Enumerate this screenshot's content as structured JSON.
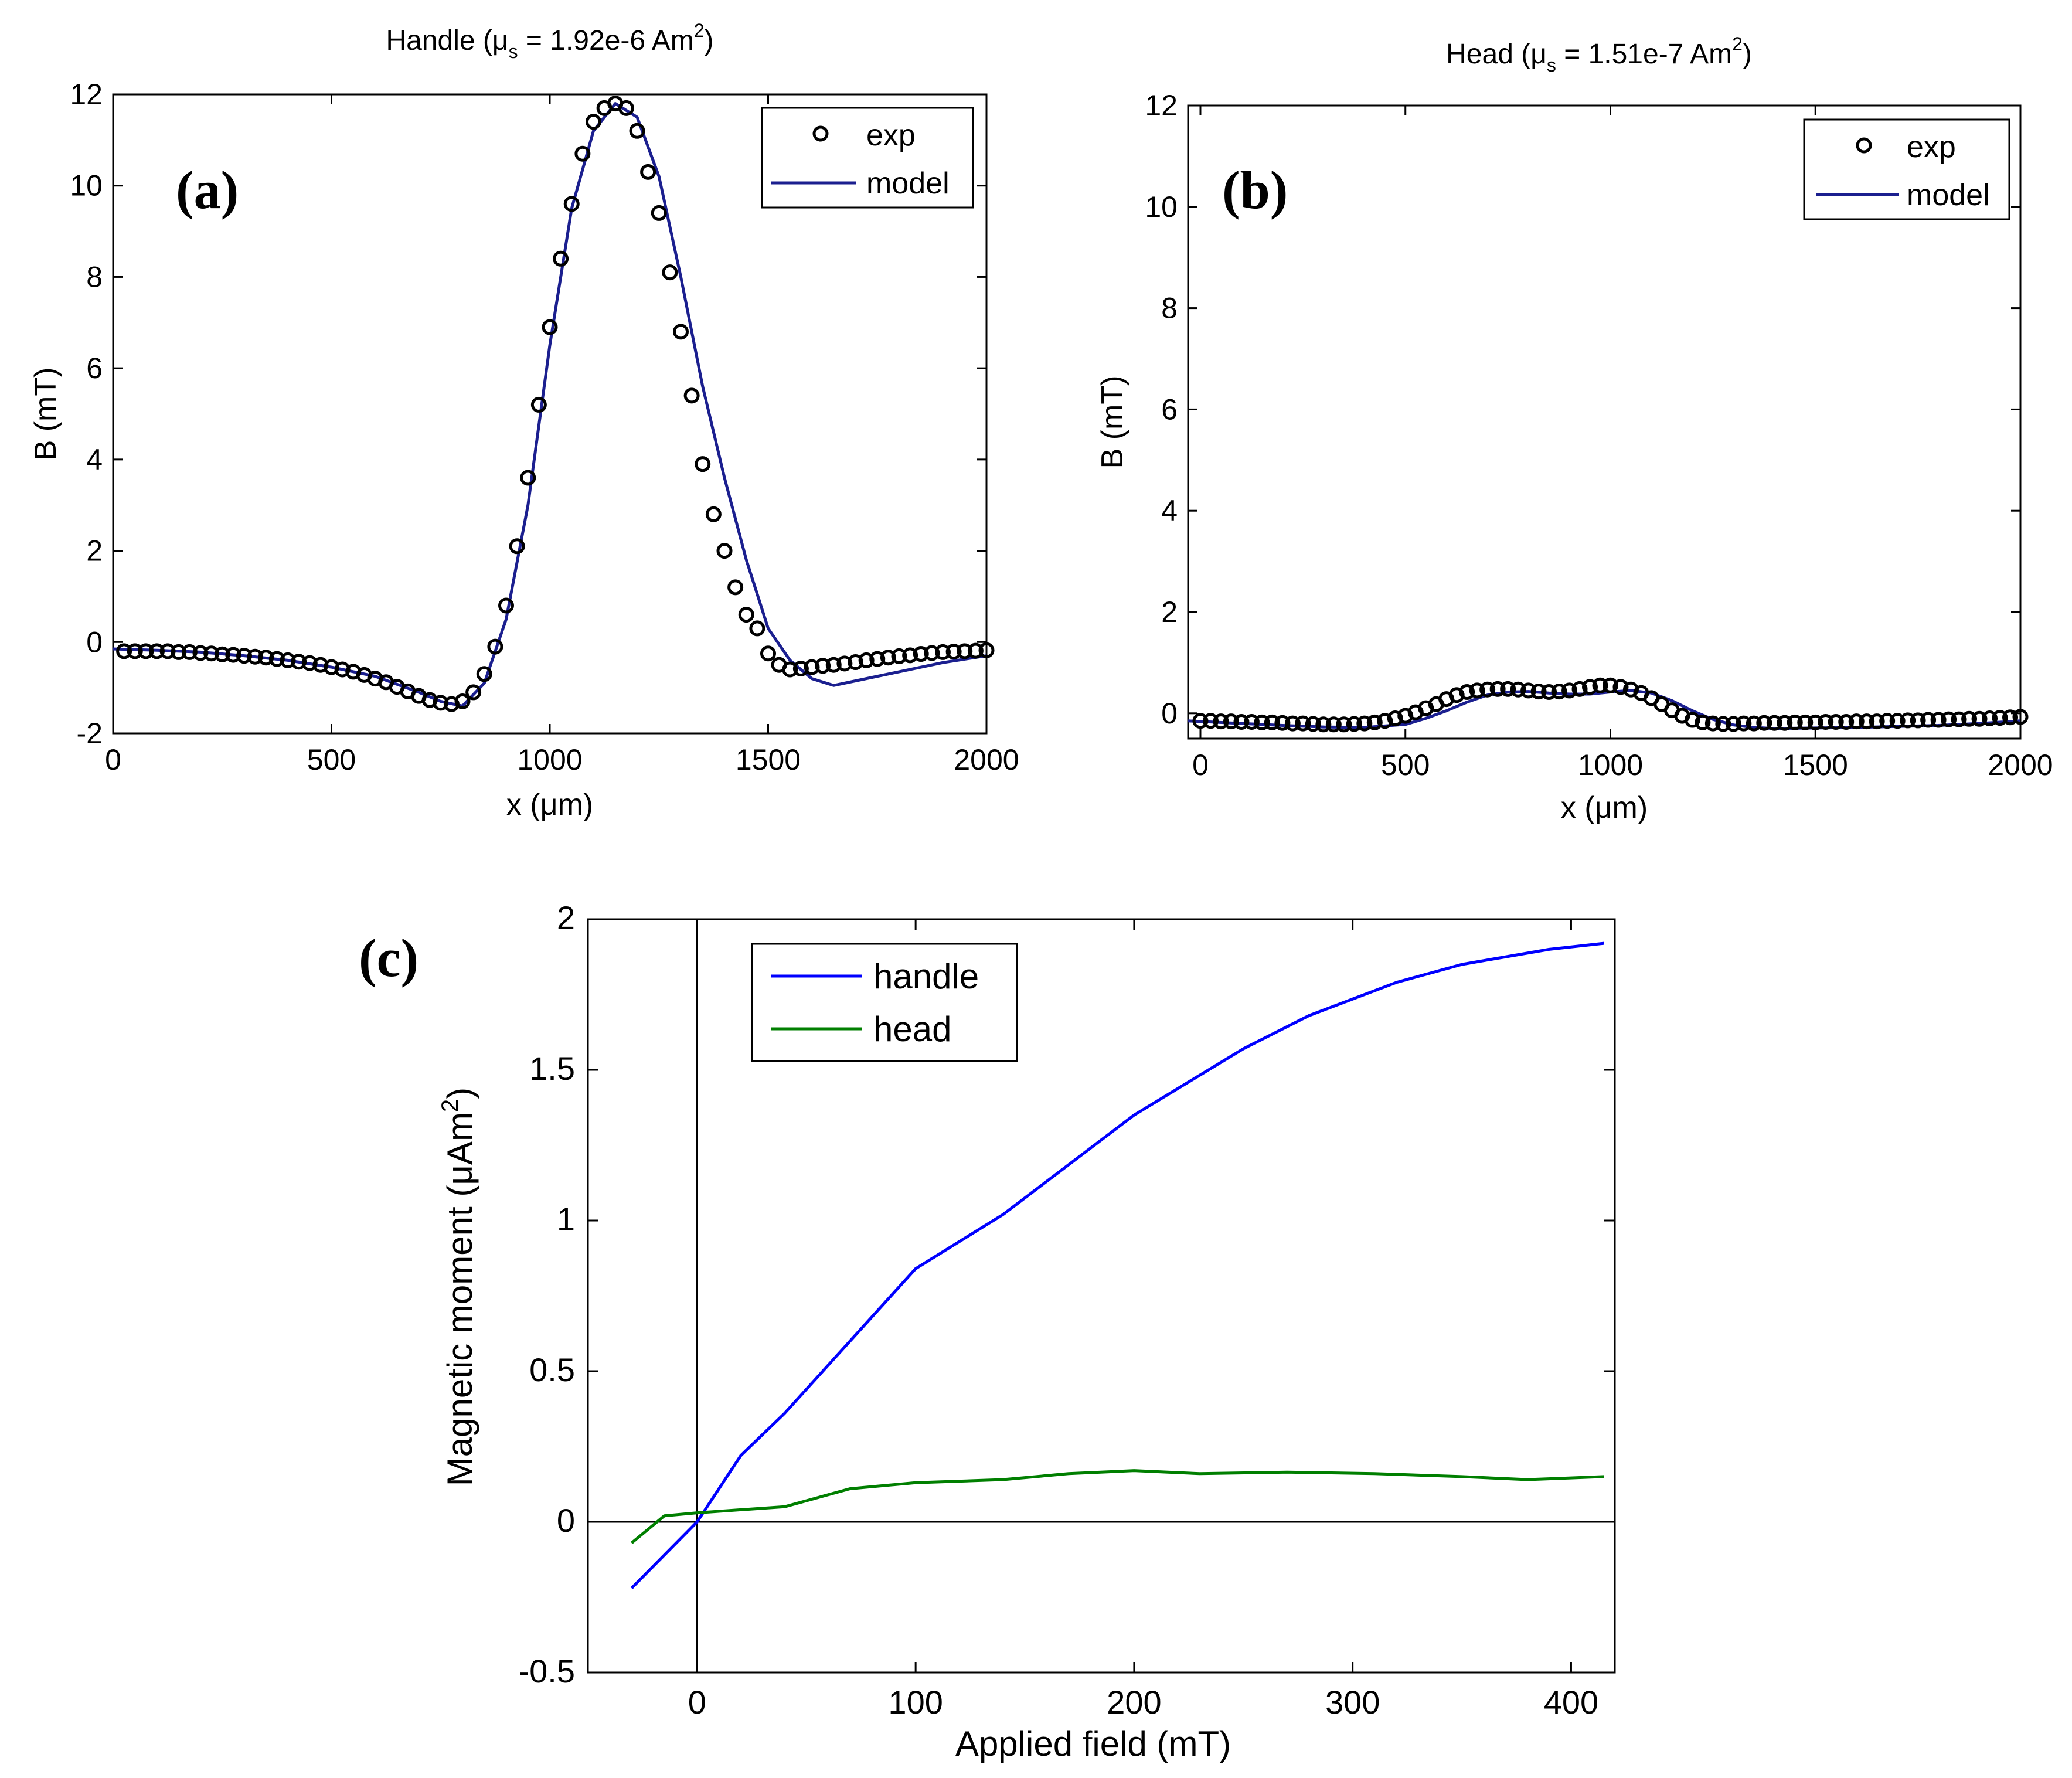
{
  "colors": {
    "exp_marker": "#000000",
    "model_line": "#1b1f8f",
    "handle_line": "#0000ff",
    "head_line": "#007f00"
  },
  "chart_data": [
    {
      "id": "a",
      "type": "line",
      "panel_label": "(a)",
      "title": {
        "prefix": "Handle (",
        "mu": "μ",
        "sub": "s",
        "mid": " = 1.92e-6 Am",
        "sup": "2",
        "suffix": ")"
      },
      "xlabel": {
        "prefix": "x (",
        "unit": "μm",
        "suffix": ")"
      },
      "ylabel": "B (mT)",
      "xlim": [
        0,
        2000
      ],
      "ylim": [
        -2,
        12
      ],
      "xticks": [
        0,
        500,
        1000,
        1500,
        2000
      ],
      "yticks": [
        -2,
        0,
        2,
        4,
        6,
        8,
        10,
        12
      ],
      "legend": {
        "position": "top-right",
        "entries": [
          "exp",
          "model"
        ]
      },
      "series": [
        {
          "name": "exp",
          "style": "markers",
          "x": [
            25,
            50,
            75,
            100,
            125,
            150,
            175,
            200,
            225,
            250,
            275,
            300,
            325,
            350,
            375,
            400,
            425,
            450,
            475,
            500,
            525,
            550,
            575,
            600,
            625,
            650,
            675,
            700,
            725,
            750,
            775,
            800,
            825,
            850,
            875,
            900,
            925,
            950,
            975,
            1000,
            1025,
            1050,
            1075,
            1100,
            1125,
            1150,
            1175,
            1200,
            1225,
            1250,
            1275,
            1300,
            1325,
            1350,
            1375,
            1400,
            1425,
            1450,
            1475,
            1500,
            1525,
            1550,
            1575,
            1600,
            1625,
            1650,
            1675,
            1700,
            1725,
            1750,
            1775,
            1800,
            1825,
            1850,
            1875,
            1900,
            1925,
            1950,
            1975,
            2000
          ],
          "y": [
            -0.2,
            -0.2,
            -0.2,
            -0.2,
            -0.2,
            -0.22,
            -0.22,
            -0.24,
            -0.25,
            -0.27,
            -0.28,
            -0.3,
            -0.32,
            -0.34,
            -0.37,
            -0.4,
            -0.43,
            -0.46,
            -0.5,
            -0.55,
            -0.6,
            -0.65,
            -0.72,
            -0.8,
            -0.88,
            -0.98,
            -1.08,
            -1.18,
            -1.27,
            -1.33,
            -1.36,
            -1.3,
            -1.1,
            -0.7,
            -0.1,
            0.8,
            2.1,
            3.6,
            5.2,
            6.9,
            8.4,
            9.6,
            10.7,
            11.4,
            11.7,
            11.8,
            11.7,
            11.2,
            10.3,
            9.4,
            8.1,
            6.8,
            5.4,
            3.9,
            2.8,
            2.0,
            1.2,
            0.6,
            0.3,
            -0.25,
            -0.5,
            -0.6,
            -0.58,
            -0.55,
            -0.52,
            -0.5,
            -0.47,
            -0.44,
            -0.4,
            -0.37,
            -0.34,
            -0.31,
            -0.29,
            -0.26,
            -0.24,
            -0.22,
            -0.21,
            -0.2,
            -0.19,
            -0.18
          ]
        },
        {
          "name": "model",
          "style": "line",
          "x": [
            0,
            100,
            200,
            300,
            400,
            500,
            600,
            700,
            750,
            800,
            850,
            900,
            950,
            1000,
            1050,
            1100,
            1150,
            1200,
            1250,
            1300,
            1350,
            1400,
            1450,
            1500,
            1550,
            1600,
            1650,
            1700,
            1800,
            1900,
            2000
          ],
          "y": [
            -0.15,
            -0.18,
            -0.22,
            -0.3,
            -0.4,
            -0.55,
            -0.75,
            -1.1,
            -1.3,
            -1.4,
            -0.9,
            0.5,
            3.0,
            6.5,
            9.5,
            11.2,
            11.8,
            11.5,
            10.2,
            8.0,
            5.6,
            3.6,
            1.8,
            0.3,
            -0.4,
            -0.8,
            -0.95,
            -0.85,
            -0.65,
            -0.45,
            -0.3
          ]
        }
      ]
    },
    {
      "id": "b",
      "type": "line",
      "panel_label": "(b)",
      "title": {
        "prefix": "Head (",
        "mu": "μ",
        "sub": "s",
        "mid": " = 1.51e-7 Am",
        "sup": "2",
        "suffix": ")"
      },
      "xlabel": {
        "prefix": "x (",
        "unit": "μm",
        "suffix": ")"
      },
      "ylabel": "B (mT)",
      "xlim": [
        -30,
        2000
      ],
      "ylim": [
        -0.5,
        12
      ],
      "xticks": [
        0,
        500,
        1000,
        1500,
        2000
      ],
      "yticks": [
        0,
        2,
        4,
        6,
        8,
        10,
        12
      ],
      "legend": {
        "position": "top-right",
        "entries": [
          "exp",
          "model"
        ]
      },
      "series": [
        {
          "name": "exp",
          "style": "markers",
          "x": [
            0,
            25,
            50,
            75,
            100,
            125,
            150,
            175,
            200,
            225,
            250,
            275,
            300,
            325,
            350,
            375,
            400,
            425,
            450,
            475,
            500,
            525,
            550,
            575,
            600,
            625,
            650,
            675,
            700,
            725,
            750,
            775,
            800,
            825,
            850,
            875,
            900,
            925,
            950,
            975,
            1000,
            1025,
            1050,
            1075,
            1100,
            1125,
            1150,
            1175,
            1200,
            1225,
            1250,
            1275,
            1300,
            1325,
            1350,
            1375,
            1400,
            1425,
            1450,
            1475,
            1500,
            1525,
            1550,
            1575,
            1600,
            1625,
            1650,
            1675,
            1700,
            1725,
            1750,
            1775,
            1800,
            1825,
            1850,
            1875,
            1900,
            1925,
            1950,
            1975,
            2000
          ],
          "y": [
            -0.15,
            -0.15,
            -0.16,
            -0.16,
            -0.17,
            -0.17,
            -0.18,
            -0.18,
            -0.19,
            -0.2,
            -0.2,
            -0.21,
            -0.22,
            -0.22,
            -0.22,
            -0.21,
            -0.2,
            -0.18,
            -0.15,
            -0.1,
            -0.05,
            0.02,
            0.1,
            0.18,
            0.28,
            0.36,
            0.42,
            0.45,
            0.47,
            0.48,
            0.48,
            0.47,
            0.45,
            0.43,
            0.42,
            0.43,
            0.45,
            0.48,
            0.52,
            0.55,
            0.55,
            0.52,
            0.47,
            0.4,
            0.3,
            0.18,
            0.06,
            -0.05,
            -0.13,
            -0.18,
            -0.2,
            -0.21,
            -0.21,
            -0.2,
            -0.2,
            -0.19,
            -0.19,
            -0.19,
            -0.18,
            -0.18,
            -0.18,
            -0.17,
            -0.17,
            -0.17,
            -0.16,
            -0.16,
            -0.16,
            -0.15,
            -0.15,
            -0.14,
            -0.14,
            -0.13,
            -0.13,
            -0.12,
            -0.12,
            -0.11,
            -0.11,
            -0.1,
            -0.09,
            -0.08,
            -0.07
          ]
        },
        {
          "name": "model",
          "style": "line",
          "x": [
            -30,
            100,
            200,
            300,
            400,
            500,
            550,
            600,
            650,
            700,
            750,
            800,
            850,
            900,
            950,
            1000,
            1050,
            1100,
            1150,
            1200,
            1250,
            1300,
            1350,
            1400,
            1500,
            1600,
            1700,
            1800,
            1900,
            2000
          ],
          "y": [
            -0.15,
            -0.2,
            -0.24,
            -0.27,
            -0.28,
            -0.22,
            -0.1,
            0.05,
            0.22,
            0.36,
            0.42,
            0.43,
            0.4,
            0.38,
            0.38,
            0.42,
            0.45,
            0.4,
            0.25,
            0.05,
            -0.12,
            -0.23,
            -0.28,
            -0.3,
            -0.29,
            -0.28,
            -0.26,
            -0.24,
            -0.2,
            -0.15
          ]
        }
      ]
    },
    {
      "id": "c",
      "type": "line",
      "panel_label": "(c)",
      "xlabel": "Applied field (mT)",
      "ylabel": {
        "prefix": "Magnetic moment (",
        "mu": "μ",
        "unit": "Am",
        "sup": "2",
        "suffix": ")"
      },
      "xlim": [
        -50,
        420
      ],
      "ylim": [
        -0.5,
        2
      ],
      "xticks": [
        0,
        100,
        200,
        300,
        400
      ],
      "yticks": [
        -0.5,
        0,
        0.5,
        1,
        1.5,
        2
      ],
      "ytick_labels": [
        "-0.5",
        "0",
        "0.5",
        "1",
        "1.5",
        "2"
      ],
      "reference_lines": {
        "x": 0,
        "y": 0
      },
      "legend": {
        "position": "top-left",
        "entries": [
          "handle",
          "head"
        ]
      },
      "series": [
        {
          "name": "handle",
          "x": [
            -30,
            0,
            20,
            40,
            70,
            100,
            140,
            200,
            250,
            280,
            320,
            350,
            390,
            415
          ],
          "y": [
            -0.22,
            0.0,
            0.22,
            0.36,
            0.6,
            0.84,
            1.02,
            1.35,
            1.57,
            1.68,
            1.79,
            1.85,
            1.9,
            1.92
          ]
        },
        {
          "name": "head",
          "x": [
            -30,
            -15,
            0,
            20,
            40,
            70,
            100,
            140,
            170,
            200,
            230,
            270,
            310,
            350,
            380,
            415
          ],
          "y": [
            -0.07,
            0.02,
            0.03,
            0.04,
            0.05,
            0.11,
            0.13,
            0.14,
            0.16,
            0.17,
            0.16,
            0.165,
            0.16,
            0.15,
            0.14,
            0.15
          ]
        }
      ]
    }
  ]
}
